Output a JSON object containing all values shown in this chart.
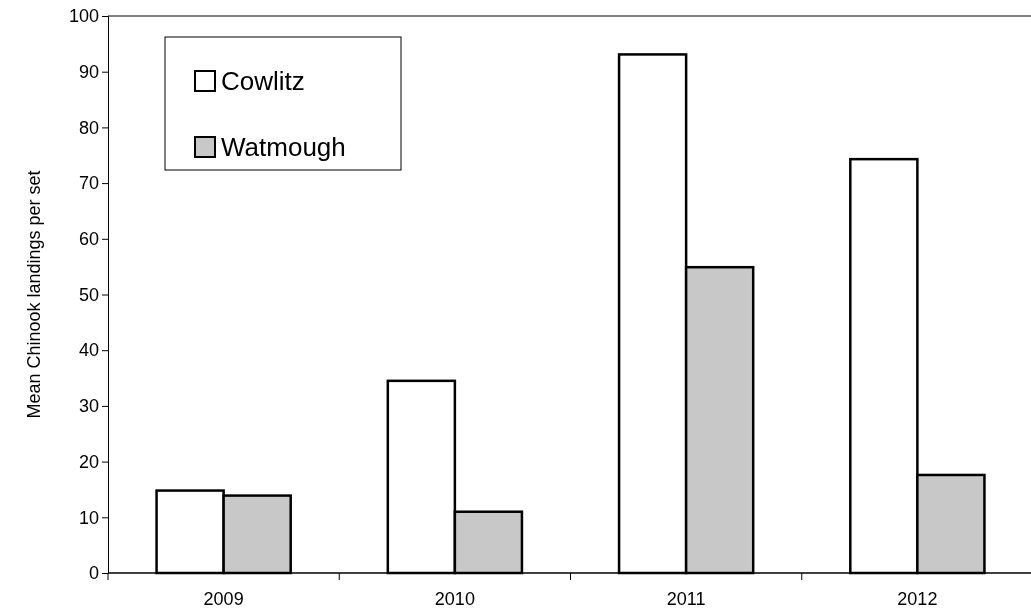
{
  "chart_data": {
    "type": "bar",
    "ylabel": "Mean Chinook landings per set",
    "categories": [
      "2009",
      "2010",
      "2011",
      "2012"
    ],
    "series": [
      {
        "name": "Cowlitz",
        "color": "#ffffff",
        "values": [
          14.8,
          34.5,
          93.1,
          74.3
        ]
      },
      {
        "name": "Watmough",
        "color": "#c8c8c8",
        "values": [
          13.9,
          11.0,
          54.9,
          17.6
        ]
      }
    ],
    "ylim": [
      0,
      100
    ],
    "yticks": [
      0,
      10,
      20,
      30,
      40,
      50,
      60,
      70,
      80,
      90,
      100
    ],
    "grid": false,
    "legend": "top left"
  }
}
